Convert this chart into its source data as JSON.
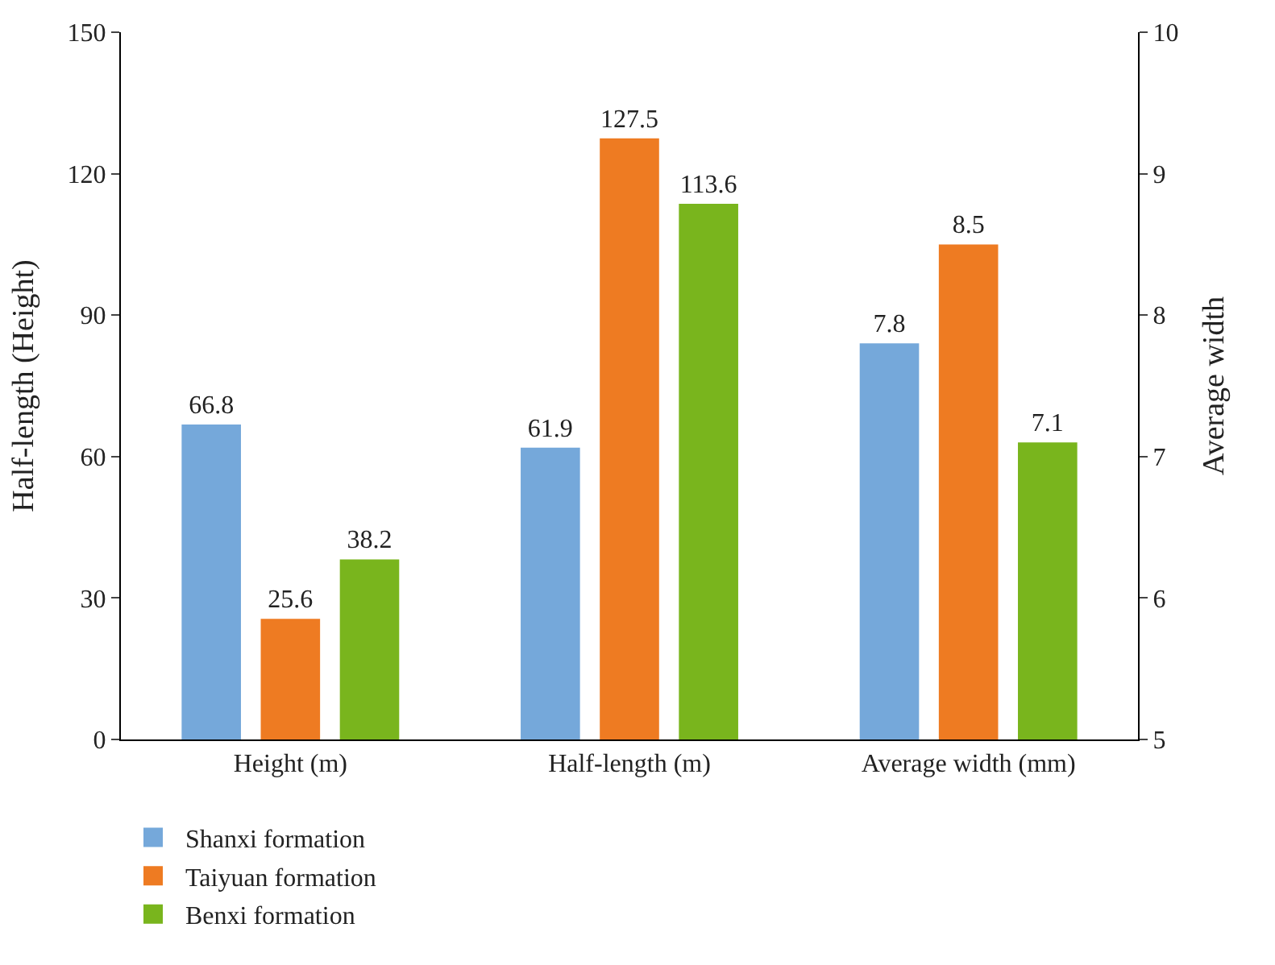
{
  "chart_data": {
    "type": "bar",
    "categories": [
      "Height (m)",
      "Half-length (m)",
      "Average width (mm)"
    ],
    "series": [
      {
        "name": "Shanxi formation",
        "color": "#75a8da",
        "values": [
          66.8,
          61.9,
          null
        ]
      },
      {
        "name": "Taiyuan formation",
        "color": "#ee7b22",
        "values": [
          25.6,
          127.5,
          null
        ]
      },
      {
        "name": "Benxi formation",
        "color": "#79b51d",
        "values": [
          38.2,
          113.6,
          null
        ]
      },
      {
        "color": "#75a8da",
        "values": [
          null,
          null,
          7.8
        ],
        "axis": "y2"
      },
      {
        "color": "#ee7b22",
        "values": [
          null,
          null,
          8.5
        ],
        "axis": "y2"
      },
      {
        "color": "#79b51d",
        "values": [
          null,
          null,
          7.1
        ],
        "axis": "y2"
      }
    ],
    "ylabel": "Half-length (Height)",
    "y2label": "Average width",
    "ylim": [
      0,
      150
    ],
    "yticks": [
      0,
      30,
      60,
      90,
      120,
      150
    ],
    "y2lim": [
      5,
      10
    ],
    "y2ticks": [
      5,
      6,
      7,
      8,
      9,
      10
    ],
    "data_labels": true,
    "legend": "bottom left"
  }
}
